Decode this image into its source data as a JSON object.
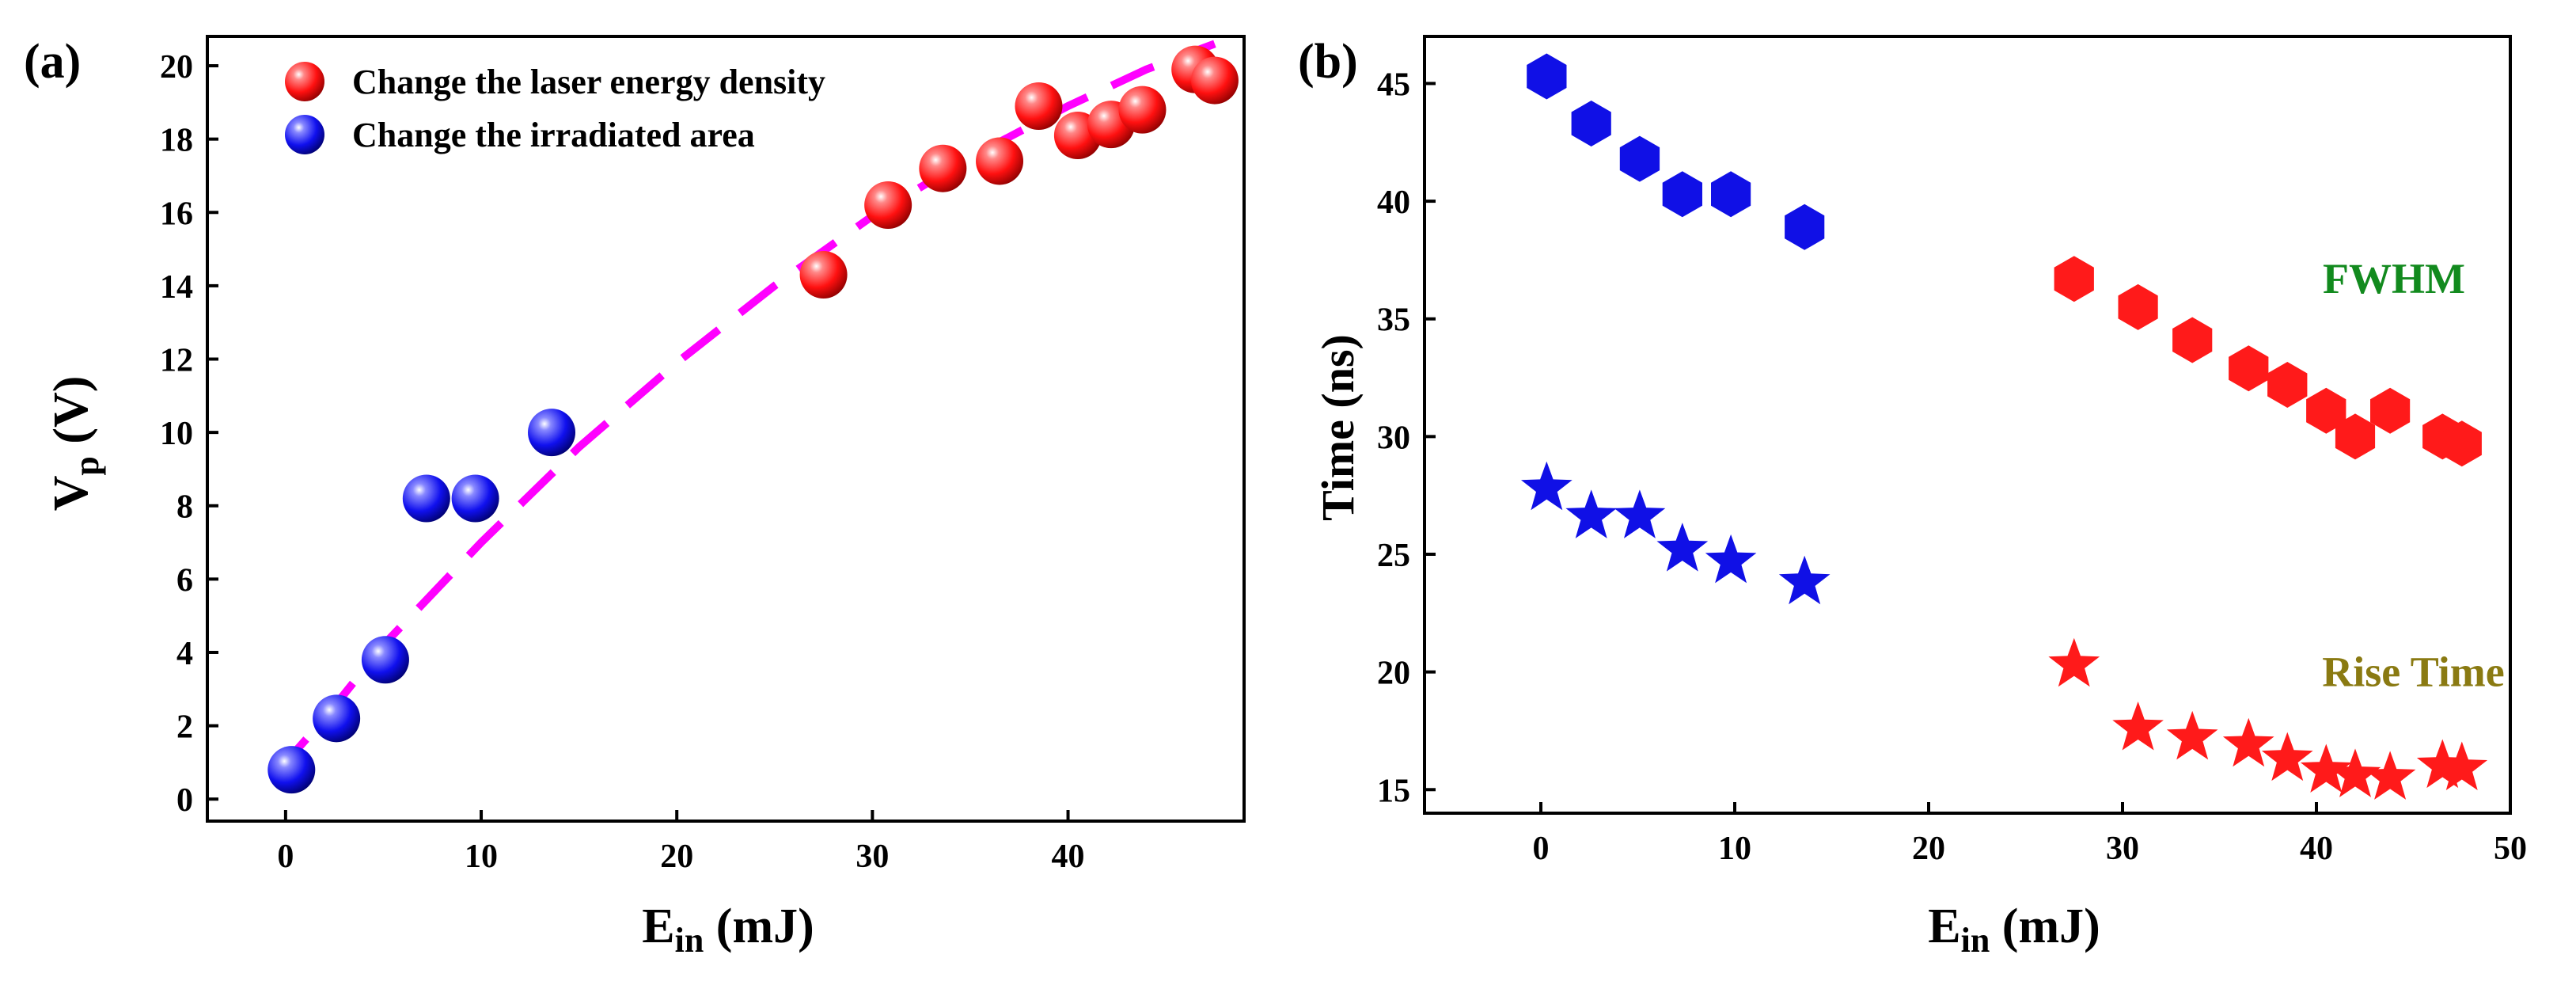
{
  "colors": {
    "red": "#ff1a1a",
    "blue": "#1010e6",
    "fit_line": "#ff00ff",
    "fwhm_label": "#128a1e",
    "rise_label": "#8a7a12"
  },
  "chart_data": [
    {
      "type": "scatter",
      "panel_label": "(a)",
      "xlabel_main": "E",
      "xlabel_sub": "in",
      "xlabel_unit": " (mJ)",
      "ylabel_main": "V",
      "ylabel_sub": "p",
      "ylabel_unit": " (V)",
      "xlim": [
        -4,
        49
      ],
      "ylim": [
        -0.6,
        20.8
      ],
      "xticks": [
        0,
        10,
        20,
        30,
        40
      ],
      "yticks": [
        0,
        2,
        4,
        6,
        8,
        10,
        12,
        14,
        16,
        18,
        20
      ],
      "legend_position": "top-left",
      "series": [
        {
          "name": "Change the laser energy density",
          "color_key": "red",
          "marker": "sphere",
          "points": [
            [
              27.5,
              14.3
            ],
            [
              30.8,
              16.2
            ],
            [
              33.6,
              17.2
            ],
            [
              36.5,
              17.4
            ],
            [
              38.5,
              18.9
            ],
            [
              40.5,
              18.1
            ],
            [
              42.2,
              18.4
            ],
            [
              43.8,
              18.8
            ],
            [
              46.5,
              19.9
            ],
            [
              47.5,
              19.6
            ]
          ]
        },
        {
          "name": "Change the irradiated area",
          "color_key": "blue",
          "marker": "sphere",
          "points": [
            [
              0.3,
              0.8
            ],
            [
              2.6,
              2.2
            ],
            [
              5.1,
              3.8
            ],
            [
              7.2,
              8.2
            ],
            [
              9.7,
              8.2
            ],
            [
              13.6,
              10.0
            ]
          ]
        }
      ],
      "fit": {
        "name": "fit",
        "style": "dashed",
        "color_key": "fit_line",
        "points": [
          [
            -0.5,
            0.7
          ],
          [
            2,
            2.2
          ],
          [
            5,
            4.2
          ],
          [
            10,
            7.0
          ],
          [
            15,
            9.6
          ],
          [
            20,
            11.9
          ],
          [
            25,
            14.0
          ],
          [
            30,
            15.9
          ],
          [
            35,
            17.5
          ],
          [
            40,
            18.9
          ],
          [
            44,
            19.9
          ],
          [
            47.5,
            20.6
          ]
        ]
      }
    },
    {
      "type": "scatter",
      "panel_label": "(b)",
      "xlabel_main": "E",
      "xlabel_sub": "in",
      "xlabel_unit": " (mJ)",
      "ylabel": "Time (ns)",
      "xlim": [
        -6,
        50
      ],
      "ylim": [
        14,
        47
      ],
      "xticks": [
        0,
        10,
        20,
        30,
        40,
        50
      ],
      "yticks": [
        15,
        20,
        25,
        30,
        35,
        40,
        45
      ],
      "annotations": [
        {
          "text": "FWHM",
          "x": 44,
          "y": 36.7,
          "color_key": "fwhm_label"
        },
        {
          "text": "Rise Time",
          "x": 45,
          "y": 20
        },
        {
          "text": "",
          "x": 0,
          "y": 0
        }
      ],
      "series": [
        {
          "name": "FWHM (irradiated area)",
          "color_key": "blue",
          "marker": "hexagon",
          "points": [
            [
              0.3,
              45.3
            ],
            [
              2.6,
              43.3
            ],
            [
              5.1,
              41.8
            ],
            [
              7.3,
              40.3
            ],
            [
              9.8,
              40.3
            ],
            [
              13.6,
              38.9
            ]
          ]
        },
        {
          "name": "FWHM (laser energy density)",
          "color_key": "red",
          "marker": "hexagon",
          "points": [
            [
              27.5,
              36.7
            ],
            [
              30.8,
              35.5
            ],
            [
              33.6,
              34.1
            ],
            [
              36.5,
              32.9
            ],
            [
              38.5,
              32.2
            ],
            [
              40.5,
              31.1
            ],
            [
              42.0,
              30.0
            ],
            [
              43.8,
              31.1
            ],
            [
              46.5,
              30.0
            ],
            [
              47.5,
              29.7
            ]
          ]
        },
        {
          "name": "Rise Time (irradiated area)",
          "color_key": "blue",
          "marker": "star",
          "points": [
            [
              0.3,
              27.8
            ],
            [
              2.6,
              26.6
            ],
            [
              5.1,
              26.6
            ],
            [
              7.3,
              25.2
            ],
            [
              9.8,
              24.7
            ],
            [
              13.6,
              23.8
            ]
          ]
        },
        {
          "name": "Rise Time (laser energy density)",
          "color_key": "red",
          "marker": "star",
          "points": [
            [
              27.5,
              20.3
            ],
            [
              30.8,
              17.6
            ],
            [
              33.6,
              17.2
            ],
            [
              36.5,
              16.9
            ],
            [
              38.5,
              16.3
            ],
            [
              40.5,
              15.8
            ],
            [
              42.0,
              15.6
            ],
            [
              43.8,
              15.5
            ],
            [
              46.5,
              16.0
            ],
            [
              47.5,
              15.9
            ]
          ]
        }
      ]
    }
  ]
}
